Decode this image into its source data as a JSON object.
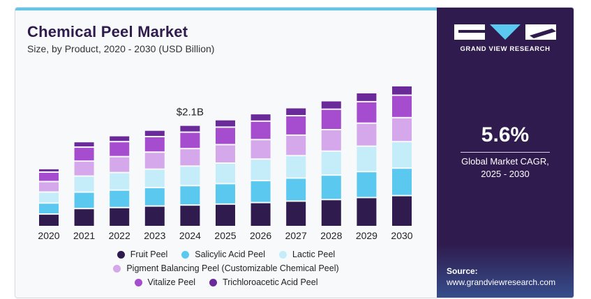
{
  "title": "Chemical Peel Market",
  "subtitle": "Size, by Product, 2020 - 2030 (USD Billion)",
  "brand": "GRAND VIEW RESEARCH",
  "cagr": {
    "value": "5.6%",
    "label_line1": "Global Market CAGR,",
    "label_line2": "2025 - 2030"
  },
  "source": {
    "label": "Source:",
    "url": "www.grandviewresearch.com"
  },
  "chart_data": {
    "type": "bar",
    "stacked": true,
    "categories": [
      "2020",
      "2021",
      "2022",
      "2023",
      "2024",
      "2025",
      "2026",
      "2027",
      "2028",
      "2029",
      "2030"
    ],
    "ylim": [
      0,
      3.35
    ],
    "grid": false,
    "legend_position": "bottom",
    "annotations": [
      {
        "category": "2024",
        "text": "$2.1B"
      }
    ],
    "series": [
      {
        "name": "Fruit Peel",
        "color": "#2f1b4e",
        "values": [
          0.25,
          0.36,
          0.38,
          0.41,
          0.43,
          0.45,
          0.48,
          0.51,
          0.54,
          0.58,
          0.62
        ]
      },
      {
        "name": "Salicylic Acid Peel",
        "color": "#5bc8f0",
        "values": [
          0.22,
          0.33,
          0.35,
          0.37,
          0.39,
          0.41,
          0.44,
          0.46,
          0.49,
          0.52,
          0.55
        ]
      },
      {
        "name": "Lactic Peel",
        "color": "#c4ecf9",
        "values": [
          0.22,
          0.32,
          0.35,
          0.37,
          0.39,
          0.41,
          0.43,
          0.45,
          0.48,
          0.51,
          0.53
        ]
      },
      {
        "name": "Pigment Balancing Peel (Customizable Chemical Peel)",
        "color": "#d4a8ea",
        "values": [
          0.21,
          0.3,
          0.32,
          0.34,
          0.35,
          0.37,
          0.39,
          0.41,
          0.43,
          0.46,
          0.48
        ]
      },
      {
        "name": "Vitalize Peel",
        "color": "#a64dcf",
        "values": [
          0.19,
          0.28,
          0.3,
          0.31,
          0.33,
          0.35,
          0.37,
          0.39,
          0.41,
          0.43,
          0.45
        ]
      },
      {
        "name": "Trichloroacetic Acid Peel",
        "color": "#6a2a9a",
        "values": [
          0.07,
          0.11,
          0.12,
          0.13,
          0.14,
          0.15,
          0.15,
          0.16,
          0.17,
          0.18,
          0.19
        ]
      }
    ]
  }
}
